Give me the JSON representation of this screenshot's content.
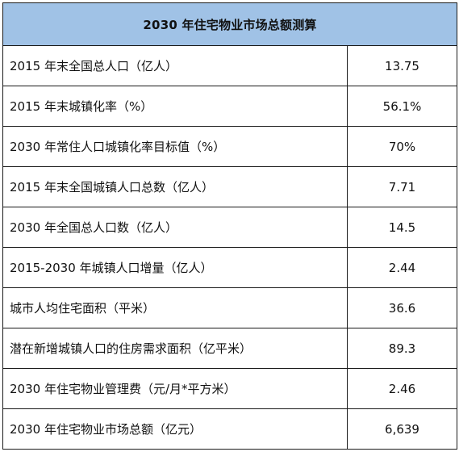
{
  "table": {
    "title": "2030 年住宅物业市场总额测算",
    "rows": [
      {
        "label": "2015 年末全国总人口（亿人）",
        "value": "13.75"
      },
      {
        "label": "2015 年末城镇化率（%）",
        "value": "56.1%"
      },
      {
        "label": "2030 年常住人口城镇化率目标值（%）",
        "value": "70%"
      },
      {
        "label": "2015 年末全国城镇人口总数（亿人）",
        "value": "7.71"
      },
      {
        "label": "2030 年全国总人口数（亿人）",
        "value": "14.5"
      },
      {
        "label": "2015-2030 年城镇人口增量（亿人）",
        "value": "2.44"
      },
      {
        "label": "城市人均住宅面积（平米）",
        "value": "36.6"
      },
      {
        "label": "潜在新增城镇人口的住房需求面积（亿平米）",
        "value": "89.3"
      },
      {
        "label": "2030 年住宅物业管理费（元/月*平方米）",
        "value": "2.46"
      },
      {
        "label": "2030 年住宅物业市场总额（亿元）",
        "value": "6,639"
      }
    ]
  }
}
